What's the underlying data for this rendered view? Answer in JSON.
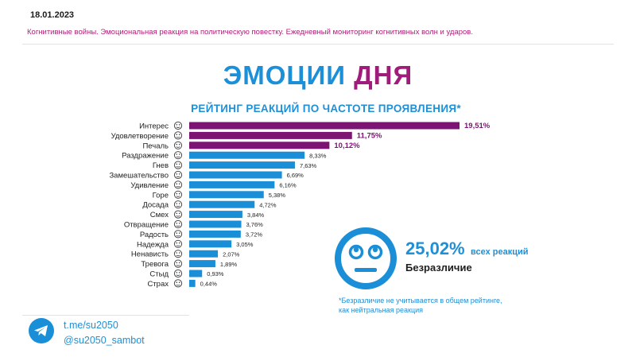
{
  "header": {
    "date": "18.01.2023",
    "subtitle": "Когнитивные войны. Эмоциональная реакция на политическую повестку. Ежедневный мониторинг когнитивных волн и ударов."
  },
  "title": {
    "word1": "ЭМОЦИИ",
    "word2": "ДНЯ"
  },
  "chart_data": {
    "type": "bar",
    "orientation": "horizontal",
    "title": "РЕЙТИНГ РЕАКЦИЙ ПО ЧАСТОТЕ ПРОЯВЛЕНИЯ*",
    "categories": [
      "Интерес",
      "Удовлетворение",
      "Печаль",
      "Раздражение",
      "Гнев",
      "Замешательство",
      "Удивление",
      "Горе",
      "Досада",
      "Смех",
      "Отвращение",
      "Радость",
      "Надежда",
      "Ненависть",
      "Тревога",
      "Стыд",
      "Страх"
    ],
    "values": [
      19.51,
      11.75,
      10.12,
      8.33,
      7.63,
      6.69,
      6.16,
      5.38,
      4.72,
      3.84,
      3.76,
      3.72,
      3.05,
      2.07,
      1.89,
      0.93,
      0.44
    ],
    "value_labels": [
      "19,51%",
      "11,75%",
      "10,12%",
      "8,33%",
      "7,63%",
      "6,69%",
      "6,16%",
      "5,38%",
      "4,72%",
      "3,84%",
      "3,76%",
      "3,72%",
      "3,05%",
      "2,07%",
      "1,89%",
      "0,93%",
      "0,44%"
    ],
    "highlight_top": 3,
    "colors": {
      "top": "#7b1473",
      "rest": "#1a8fd8"
    },
    "xlim": [
      0,
      19.51
    ],
    "grid": false,
    "legend": "none"
  },
  "callout": {
    "percent": "25,02%",
    "suffix": "всех реакций",
    "label": "Безразличие",
    "icon": "neutral-face-icon",
    "color": "#1a8fd8"
  },
  "footnote": {
    "line1": "*Безразличие не учитывается в общем рейтинге,",
    "line2": "как нейтральная реакция"
  },
  "footer": {
    "icon": "telegram-icon",
    "link1": "t.me/su2050",
    "link2": "@su2050_sambot"
  }
}
